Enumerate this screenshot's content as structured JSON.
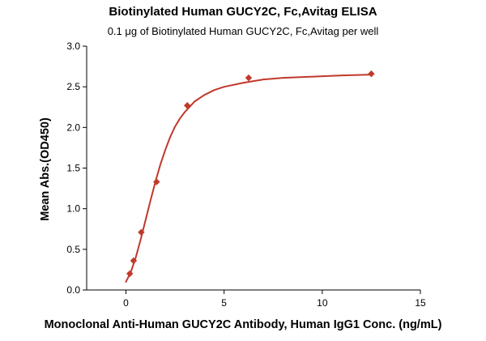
{
  "chart_data": {
    "type": "scatter",
    "title": "Biotinylated Human GUCY2C, Fc,Avitag ELISA",
    "subtitle": "0.1 μg of Biotinylated Human GUCY2C, Fc,Avitag per well",
    "xlabel": "Monoclonal Anti-Human GUCY2C Antibody, Human IgG1 Conc. (ng/mL)",
    "ylabel": "Mean Abs.(OD450)",
    "xlim": [
      -2,
      15
    ],
    "ylim": [
      0,
      3.0
    ],
    "x_ticks": [
      0,
      5,
      10,
      15
    ],
    "x_tick_labels": [
      "0",
      "5",
      "10",
      "15"
    ],
    "y_ticks": [
      0,
      0.5,
      1.0,
      1.5,
      2.0,
      2.5,
      3.0
    ],
    "y_tick_labels": [
      "0.0",
      "0.5",
      "1.0",
      "1.5",
      "2.0",
      "2.5",
      "3.0"
    ],
    "grid": false,
    "legend": "none",
    "marker_color": "#c0392b",
    "line_color": "#c0392b",
    "series": [
      {
        "x": [
          0.195,
          0.39,
          0.78,
          1.56,
          3.125,
          6.25,
          12.5
        ],
        "y": [
          0.2,
          0.36,
          0.71,
          1.33,
          2.27,
          2.61,
          2.66
        ]
      }
    ],
    "fit_curve": {
      "x": [
        0.0,
        0.25,
        0.5,
        0.75,
        1.0,
        1.25,
        1.5,
        1.75,
        2.0,
        2.25,
        2.5,
        2.75,
        3.0,
        3.5,
        4.0,
        4.5,
        5.0,
        6.0,
        7.0,
        8.0,
        9.0,
        10.0,
        11.0,
        12.5
      ],
      "y": [
        0.1,
        0.22,
        0.4,
        0.62,
        0.86,
        1.1,
        1.33,
        1.54,
        1.72,
        1.88,
        2.01,
        2.11,
        2.19,
        2.32,
        2.4,
        2.46,
        2.5,
        2.55,
        2.59,
        2.61,
        2.62,
        2.63,
        2.64,
        2.65
      ]
    }
  }
}
